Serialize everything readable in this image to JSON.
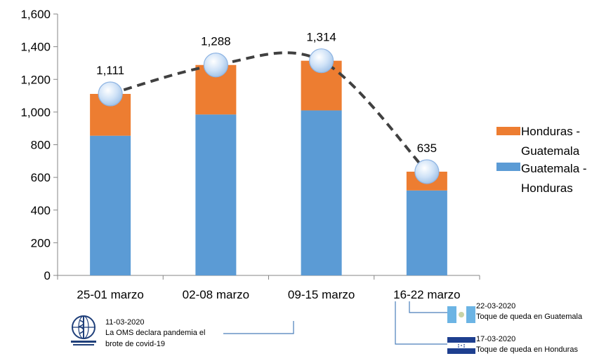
{
  "chart_data": {
    "type": "bar",
    "stacked": true,
    "categories": [
      "25-01 marzo",
      "02-08 marzo",
      "09-15 marzo",
      "16-22 marzo"
    ],
    "series": [
      {
        "name": "Guatemala - Honduras",
        "values": [
          855,
          985,
          1010,
          520
        ],
        "color": "#5b9bd5"
      },
      {
        "name": "Honduras - Guatemala",
        "values": [
          256,
          303,
          304,
          115
        ],
        "color": "#ed7d31"
      }
    ],
    "totals": [
      1111,
      1288,
      1314,
      635
    ],
    "total_labels": [
      "1,111",
      "1,288",
      "1,314",
      "635"
    ],
    "trend_line": {
      "style": "dashed",
      "color": "#404040"
    },
    "ylim": [
      0,
      1600
    ],
    "yticks": [
      0,
      200,
      400,
      600,
      800,
      1000,
      1200,
      1400,
      1600
    ],
    "ytick_labels": [
      "0",
      "200",
      "400",
      "600",
      "800",
      "1,000",
      "1,200",
      "1,400",
      "1,600"
    ],
    "grid": false,
    "legend_position": "right",
    "legend": [
      {
        "line1": "Honduras -",
        "line2": "Guatemala",
        "color": "#ed7d31"
      },
      {
        "line1": "Guatemala -",
        "line2": "Honduras",
        "color": "#5b9bd5"
      }
    ],
    "annotations": [
      {
        "date": "11-03-2020",
        "text1": "La OMS declara pandemia el",
        "text2": "brote de covid-19",
        "icon": "who-logo-icon"
      },
      {
        "date": "22-03-2020",
        "text1": "Toque de queda en Guatemala",
        "icon": "guatemala-flag-icon"
      },
      {
        "date": "17-03-2020",
        "text1": "Toque de queda en Honduras",
        "icon": "honduras-flag-icon"
      }
    ]
  }
}
